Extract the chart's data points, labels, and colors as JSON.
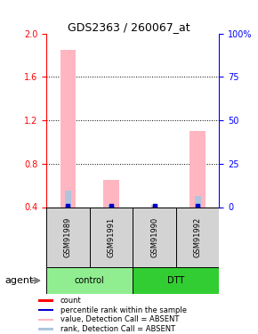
{
  "title": "GDS2363 / 260067_at",
  "samples": [
    "GSM91989",
    "GSM91991",
    "GSM91990",
    "GSM91992"
  ],
  "groups": [
    "control",
    "control",
    "DTT",
    "DTT"
  ],
  "group_colors": {
    "control": "#90EE90",
    "DTT": "#32CD32"
  },
  "ylim_left": [
    0.4,
    2.0
  ],
  "ylim_right": [
    0,
    100
  ],
  "yticks_left": [
    0.4,
    0.8,
    1.2,
    1.6,
    2.0
  ],
  "yticks_right": [
    0,
    25,
    50,
    75,
    100
  ],
  "pink_bar_values": [
    1.85,
    0.65,
    0.4,
    1.1
  ],
  "blue_bar_values": [
    0.55,
    0.42,
    0.42,
    0.5
  ],
  "pink_bar_bottom": [
    0.4,
    0.4,
    0.4,
    0.4
  ],
  "blue_bar_bottom": [
    0.4,
    0.4,
    0.4,
    0.4
  ],
  "legend_items": [
    {
      "label": "count",
      "color": "#FF0000",
      "style": "square"
    },
    {
      "label": "percentile rank within the sample",
      "color": "#0000FF",
      "style": "square"
    },
    {
      "label": "value, Detection Call = ABSENT",
      "color": "#FFB6C1",
      "style": "square"
    },
    {
      "label": "rank, Detection Call = ABSENT",
      "color": "#B0C4DE",
      "style": "square"
    }
  ],
  "grid_color": "black",
  "grid_linestyle": "dotted",
  "left_axis_color": "red",
  "right_axis_color": "blue",
  "bar_width": 0.6,
  "agent_label": "agent"
}
